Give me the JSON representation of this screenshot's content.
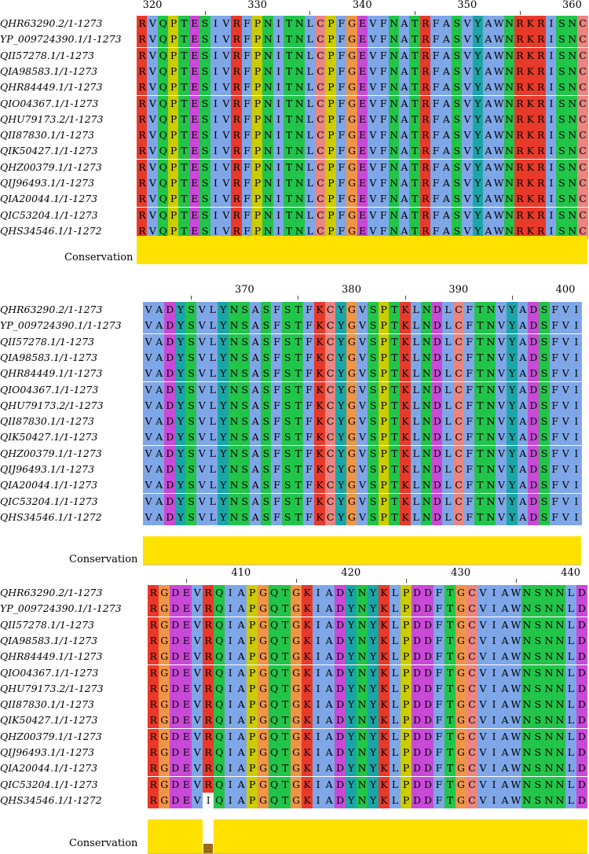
{
  "sequences": [
    "QHR63290.2/1-1273",
    "YP_009724390.1/1-1273",
    "QII57278.1/1-1273",
    "QIA98583.1/1-1273",
    "QHR84449.1/1-1273",
    "QIO04367.1/1-1273",
    "QHU79173.2/1-1273",
    "QII87830.1/1-1273",
    "QIK50427.1/1-1273",
    "QHZ00379.1/1-1273",
    "QIJ96493.1/1-1273",
    "QIA20044.1/1-1273",
    "QIC53204.1/1-1273",
    "QHS34546.1/1-1272"
  ],
  "conservation_label": "Conservation",
  "blocks": [
    {
      "ticks": [
        320,
        330,
        340,
        350,
        360
      ],
      "residues": "RVQPTESIVRFPNITNLCPFGEVFNATRFASVYAWNRKRISNC",
      "variants": [],
      "low_conservation": []
    },
    {
      "ticks": [
        370,
        380,
        390,
        400
      ],
      "residues": "VADYSVLYNSASFSTFKCYGVSPTKLNDLCFTNVYADSFVI",
      "variants": [],
      "low_conservation": []
    },
    {
      "ticks": [
        410,
        420,
        430,
        440
      ],
      "residues": "RGDEVRQIAPGQTGKIADYNYKLPDDFTGCVIAWNSNNLD",
      "variants": [
        {
          "row": 13,
          "col": 5,
          "residue": "I"
        }
      ],
      "low_conservation": [
        5
      ]
    }
  ],
  "colors": {
    "R": "#e83a2b",
    "K": "#e83a2b",
    "A": "#7fa7e8",
    "I": "#7fa7e8",
    "L": "#7fa7e8",
    "M": "#7fa7e8",
    "F": "#7fa7e8",
    "W": "#7fa7e8",
    "V": "#7fa7e8",
    "N": "#22c44a",
    "Q": "#22c44a",
    "S": "#22c44a",
    "T": "#22c44a",
    "D": "#c84ad6",
    "E": "#c84ad6",
    "C": "#eb8580",
    "G": "#ef9548",
    "P": "#cccc00",
    "H": "#1aa6a6",
    "Y": "#1aa6a6",
    "variant": "#ffffff",
    "conservation_high": "#ffe100",
    "conservation_low": "#9c6a14"
  }
}
